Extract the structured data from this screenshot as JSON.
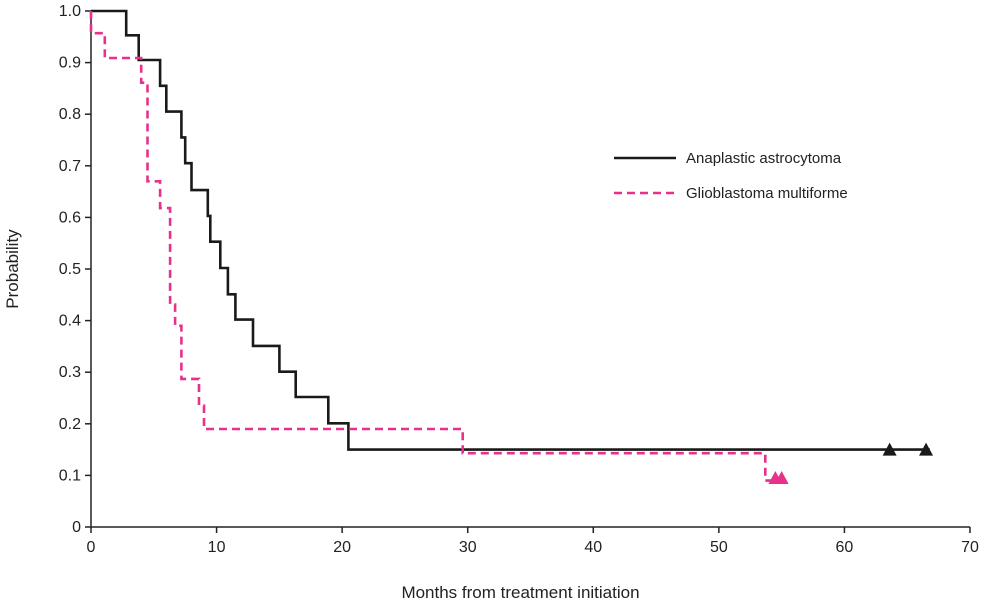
{
  "chart_data": {
    "type": "line",
    "subtype": "kaplan-meier step",
    "title": "",
    "xlabel": "Months from treatment initiation",
    "ylabel": "Probability",
    "xlim": [
      0,
      70
    ],
    "ylim": [
      0,
      1.0
    ],
    "xticks": [
      0,
      10,
      20,
      30,
      40,
      50,
      60,
      70
    ],
    "xtick_labels": [
      "0",
      "10",
      "20",
      "30",
      "40",
      "50",
      "60",
      "70"
    ],
    "yticks": [
      0,
      0.1,
      0.2,
      0.3,
      0.4,
      0.5,
      0.6,
      0.7,
      0.8,
      0.9,
      1.0
    ],
    "ytick_labels": [
      "0",
      "0.1",
      "0.2",
      "0.3",
      "0.4",
      "0.5",
      "0.6",
      "0.7",
      "0.8",
      "0.9",
      "1.0"
    ],
    "grid": false,
    "legend_position": "upper-right",
    "series": [
      {
        "name": "Anaplastic astrocytoma",
        "color": "#1a1a1a",
        "style": "solid",
        "points": [
          [
            0,
            1.0
          ],
          [
            2.8,
            1.0
          ],
          [
            2.8,
            0.953
          ],
          [
            3.8,
            0.953
          ],
          [
            3.8,
            0.905
          ],
          [
            5.5,
            0.905
          ],
          [
            5.5,
            0.855
          ],
          [
            6.0,
            0.855
          ],
          [
            6.0,
            0.805
          ],
          [
            7.2,
            0.805
          ],
          [
            7.2,
            0.755
          ],
          [
            7.5,
            0.755
          ],
          [
            7.5,
            0.705
          ],
          [
            8.0,
            0.705
          ],
          [
            8.0,
            0.653
          ],
          [
            9.3,
            0.653
          ],
          [
            9.3,
            0.603
          ],
          [
            9.5,
            0.603
          ],
          [
            9.5,
            0.553
          ],
          [
            10.3,
            0.553
          ],
          [
            10.3,
            0.502
          ],
          [
            10.9,
            0.502
          ],
          [
            10.9,
            0.451
          ],
          [
            11.5,
            0.451
          ],
          [
            11.5,
            0.402
          ],
          [
            12.9,
            0.402
          ],
          [
            12.9,
            0.351
          ],
          [
            15.0,
            0.351
          ],
          [
            15.0,
            0.301
          ],
          [
            16.3,
            0.301
          ],
          [
            16.3,
            0.252
          ],
          [
            18.9,
            0.252
          ],
          [
            18.9,
            0.201
          ],
          [
            20.5,
            0.201
          ],
          [
            20.5,
            0.15
          ],
          [
            66.8,
            0.15
          ]
        ],
        "censored": [
          [
            63.6,
            0.15
          ],
          [
            66.5,
            0.15
          ]
        ]
      },
      {
        "name": "Glioblastoma multiforme",
        "color": "#e8318a",
        "style": "dashed",
        "points": [
          [
            0,
            1.0
          ],
          [
            0,
            0.957
          ],
          [
            1.1,
            0.957
          ],
          [
            1.1,
            0.909
          ],
          [
            4.0,
            0.909
          ],
          [
            4.0,
            0.861
          ],
          [
            4.5,
            0.861
          ],
          [
            4.5,
            0.67
          ],
          [
            5.5,
            0.67
          ],
          [
            5.5,
            0.618
          ],
          [
            6.3,
            0.618
          ],
          [
            6.3,
            0.431
          ],
          [
            6.7,
            0.431
          ],
          [
            6.7,
            0.39
          ],
          [
            7.2,
            0.39
          ],
          [
            7.2,
            0.287
          ],
          [
            8.6,
            0.287
          ],
          [
            8.6,
            0.235
          ],
          [
            9.0,
            0.235
          ],
          [
            9.0,
            0.19
          ],
          [
            29.6,
            0.19
          ],
          [
            29.6,
            0.143
          ],
          [
            53.7,
            0.143
          ],
          [
            53.7,
            0.09
          ],
          [
            55.0,
            0.09
          ]
        ],
        "censored": [
          [
            54.5,
            0.095
          ],
          [
            55.0,
            0.095
          ]
        ]
      }
    ]
  }
}
